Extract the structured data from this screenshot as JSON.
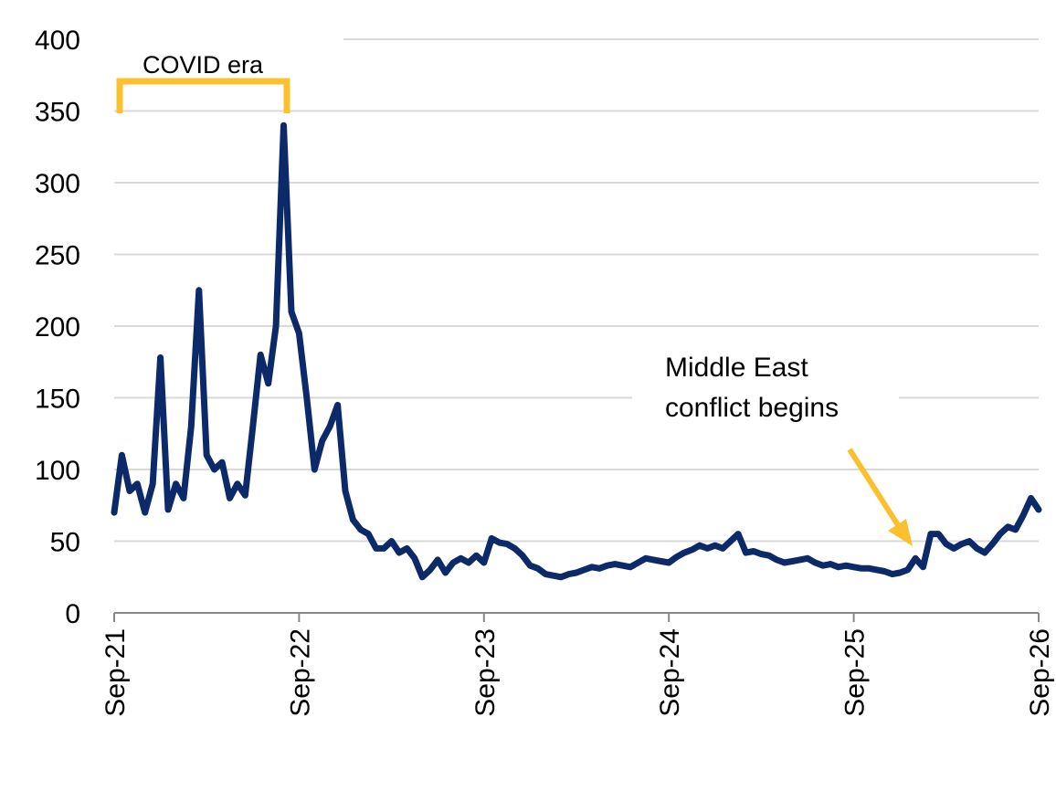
{
  "chart_data": {
    "type": "line",
    "categories": [
      "Sep-21",
      null,
      null,
      null,
      null,
      null,
      null,
      null,
      null,
      null,
      null,
      null,
      null,
      null,
      null,
      null,
      null,
      null,
      null,
      null,
      null,
      null,
      null,
      null,
      "Sep-22",
      null,
      null,
      null,
      null,
      null,
      null,
      null,
      null,
      null,
      null,
      null,
      null,
      null,
      null,
      null,
      null,
      null,
      null,
      null,
      null,
      null,
      null,
      null,
      "Sep-23",
      null,
      null,
      null,
      null,
      null,
      null,
      null,
      null,
      null,
      null,
      null,
      null,
      null,
      null,
      null,
      null,
      null,
      null,
      null,
      null,
      null,
      null,
      null,
      "Sep-24",
      null,
      null,
      null,
      null,
      null,
      null,
      null,
      null,
      null,
      null,
      null,
      null,
      null,
      null,
      null,
      null,
      null,
      null,
      null,
      null,
      null,
      null,
      null,
      "Sep-25",
      null,
      null,
      null,
      null,
      null,
      null,
      null,
      null,
      null,
      null,
      null,
      null,
      null,
      null,
      null,
      null,
      null,
      null,
      null,
      null,
      null,
      null,
      null,
      "Sep-26"
    ],
    "values": [
      70,
      110,
      85,
      90,
      70,
      90,
      178,
      72,
      90,
      80,
      130,
      225,
      110,
      100,
      105,
      80,
      90,
      82,
      130,
      180,
      160,
      200,
      340,
      210,
      195,
      150,
      100,
      120,
      130,
      145,
      85,
      65,
      58,
      55,
      45,
      45,
      50,
      42,
      45,
      38,
      25,
      30,
      37,
      28,
      35,
      38,
      35,
      40,
      35,
      52,
      49,
      48,
      45,
      40,
      33,
      31,
      27,
      26,
      25,
      27,
      28,
      30,
      32,
      31,
      33,
      34,
      33,
      32,
      35,
      38,
      37,
      36,
      35,
      39,
      42,
      44,
      47,
      45,
      47,
      45,
      50,
      55,
      42,
      43,
      41,
      40,
      37,
      35,
      36,
      37,
      38,
      35,
      33,
      34,
      32,
      33,
      32,
      31,
      31,
      30,
      29,
      27,
      28,
      30,
      38,
      32,
      55,
      55,
      48,
      45,
      48,
      50,
      45,
      42,
      48,
      55,
      60,
      58,
      68,
      80,
      72
    ],
    "color": "#0c2a6a",
    "ylim": [
      0,
      400
    ],
    "yticks": [
      0,
      50,
      100,
      150,
      200,
      250,
      300,
      350,
      400
    ],
    "grid": true,
    "annotations": [
      {
        "text": "COVID era"
      },
      {
        "lines": [
          "Middle East",
          "conflict begins"
        ]
      }
    ]
  }
}
